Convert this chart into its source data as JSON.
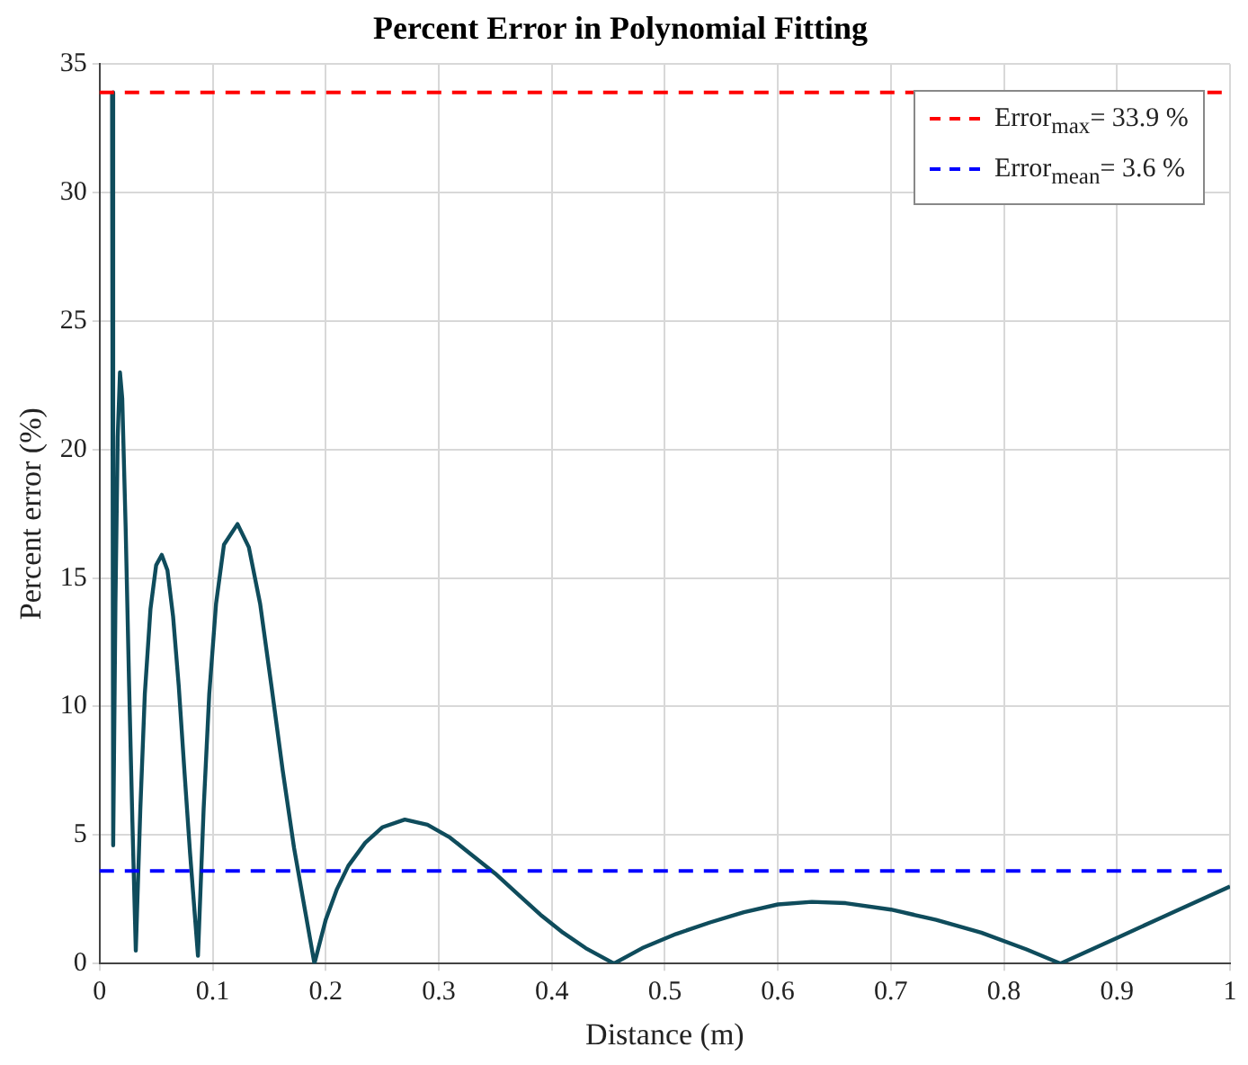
{
  "chart_data": {
    "type": "line",
    "title": "Percent Error in Polynomial Fitting",
    "xlabel": "Distance (m)",
    "ylabel": "Percent error (%)",
    "x": [
      0.011,
      0.012,
      0.014,
      0.016,
      0.018,
      0.02,
      0.023,
      0.026,
      0.029,
      0.032,
      0.036,
      0.04,
      0.045,
      0.05,
      0.055,
      0.06,
      0.065,
      0.07,
      0.075,
      0.08,
      0.087,
      0.092,
      0.097,
      0.103,
      0.11,
      0.122,
      0.132,
      0.142,
      0.152,
      0.162,
      0.172,
      0.182,
      0.19,
      0.2,
      0.21,
      0.22,
      0.235,
      0.25,
      0.27,
      0.29,
      0.31,
      0.33,
      0.35,
      0.37,
      0.39,
      0.41,
      0.43,
      0.455,
      0.48,
      0.51,
      0.54,
      0.57,
      0.6,
      0.63,
      0.66,
      0.7,
      0.74,
      0.78,
      0.82,
      0.85,
      0.9,
      0.95,
      1.0
    ],
    "series": [
      {
        "color": "#0f4c5c",
        "values": [
          33.9,
          4.6,
          14,
          20.5,
          23,
          22,
          17,
          11,
          5.5,
          0.5,
          6,
          10.5,
          13.8,
          15.5,
          15.9,
          15.3,
          13.5,
          10.8,
          7.5,
          4.3,
          0.3,
          6,
          10.5,
          14,
          16.3,
          17.1,
          16.2,
          14,
          10.8,
          7.5,
          4.5,
          2,
          0,
          1.7,
          2.9,
          3.8,
          4.7,
          5.3,
          5.6,
          5.4,
          4.9,
          4.2,
          3.5,
          2.7,
          1.9,
          1.2,
          0.6,
          0,
          0.6,
          1.15,
          1.6,
          2.0,
          2.3,
          2.4,
          2.35,
          2.1,
          1.7,
          1.2,
          0.55,
          0,
          1.0,
          2.0,
          3.0
        ]
      }
    ],
    "xlim": [
      0,
      1
    ],
    "xticks": [
      0,
      0.1,
      0.2,
      0.3,
      0.4,
      0.5,
      0.6,
      0.7,
      0.8,
      0.9,
      1
    ],
    "ylim": [
      0,
      35
    ],
    "yticks": [
      0,
      5,
      10,
      15,
      20,
      25,
      30,
      35
    ],
    "ref_lines": [
      {
        "axis": "y",
        "value": 33.9,
        "label": "Error$_{max}$= 33.9 %",
        "color": "#ff0000",
        "line_style": "dashed"
      },
      {
        "axis": "y",
        "value": 3.6,
        "label": "Error$_{mean}$= 3.6 %",
        "color": "#0000ff",
        "line_style": "dashed"
      }
    ],
    "grid": true,
    "legend": "top right",
    "marker": "none",
    "line_style": "solid"
  }
}
